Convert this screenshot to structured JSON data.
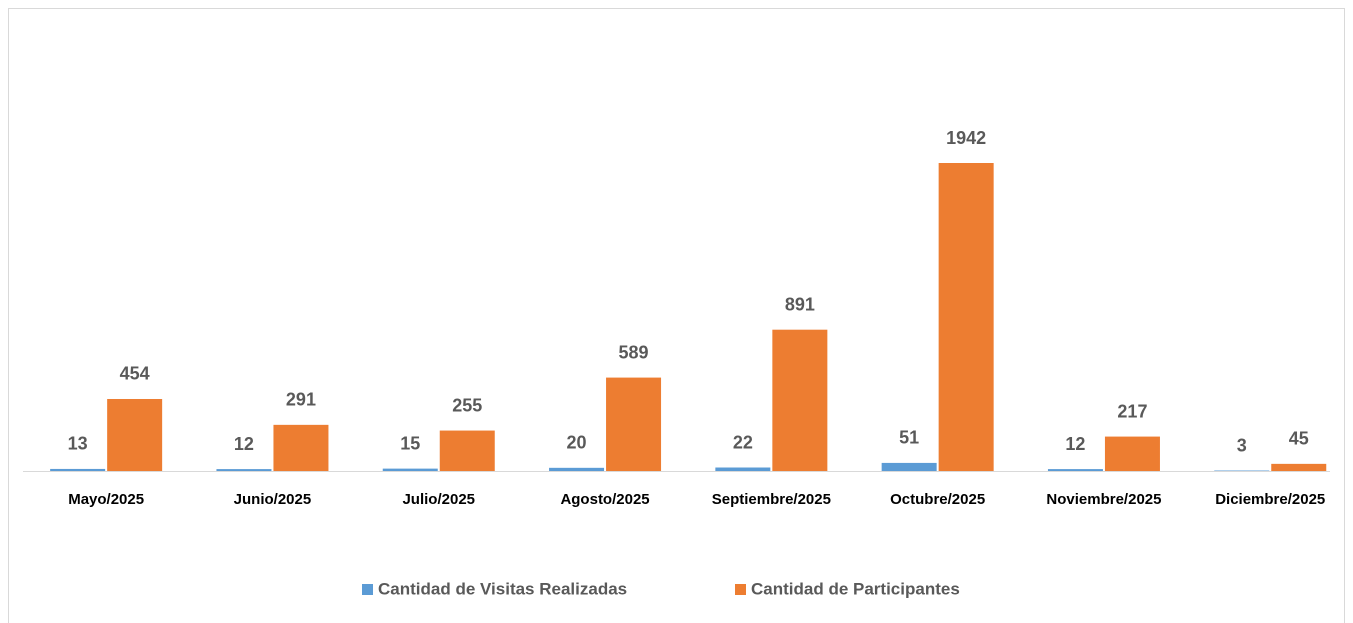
{
  "chart_data": {
    "type": "bar",
    "categories": [
      "Mayo/2025",
      "Junio/2025",
      "Julio/2025",
      "Agosto/2025",
      "Septiembre/2025",
      "Octubre/2025",
      "Noviembre/2025",
      "Diciembre/2025"
    ],
    "series": [
      {
        "name": "Cantidad de Visitas Realizadas",
        "color": "#5b9bd5",
        "values": [
          13,
          12,
          15,
          20,
          22,
          51,
          12,
          3
        ]
      },
      {
        "name": "Cantidad de Participantes",
        "color": "#ed7d31",
        "values": [
          454,
          291,
          255,
          589,
          891,
          1942,
          217,
          45
        ]
      }
    ],
    "legend": "bottom"
  }
}
